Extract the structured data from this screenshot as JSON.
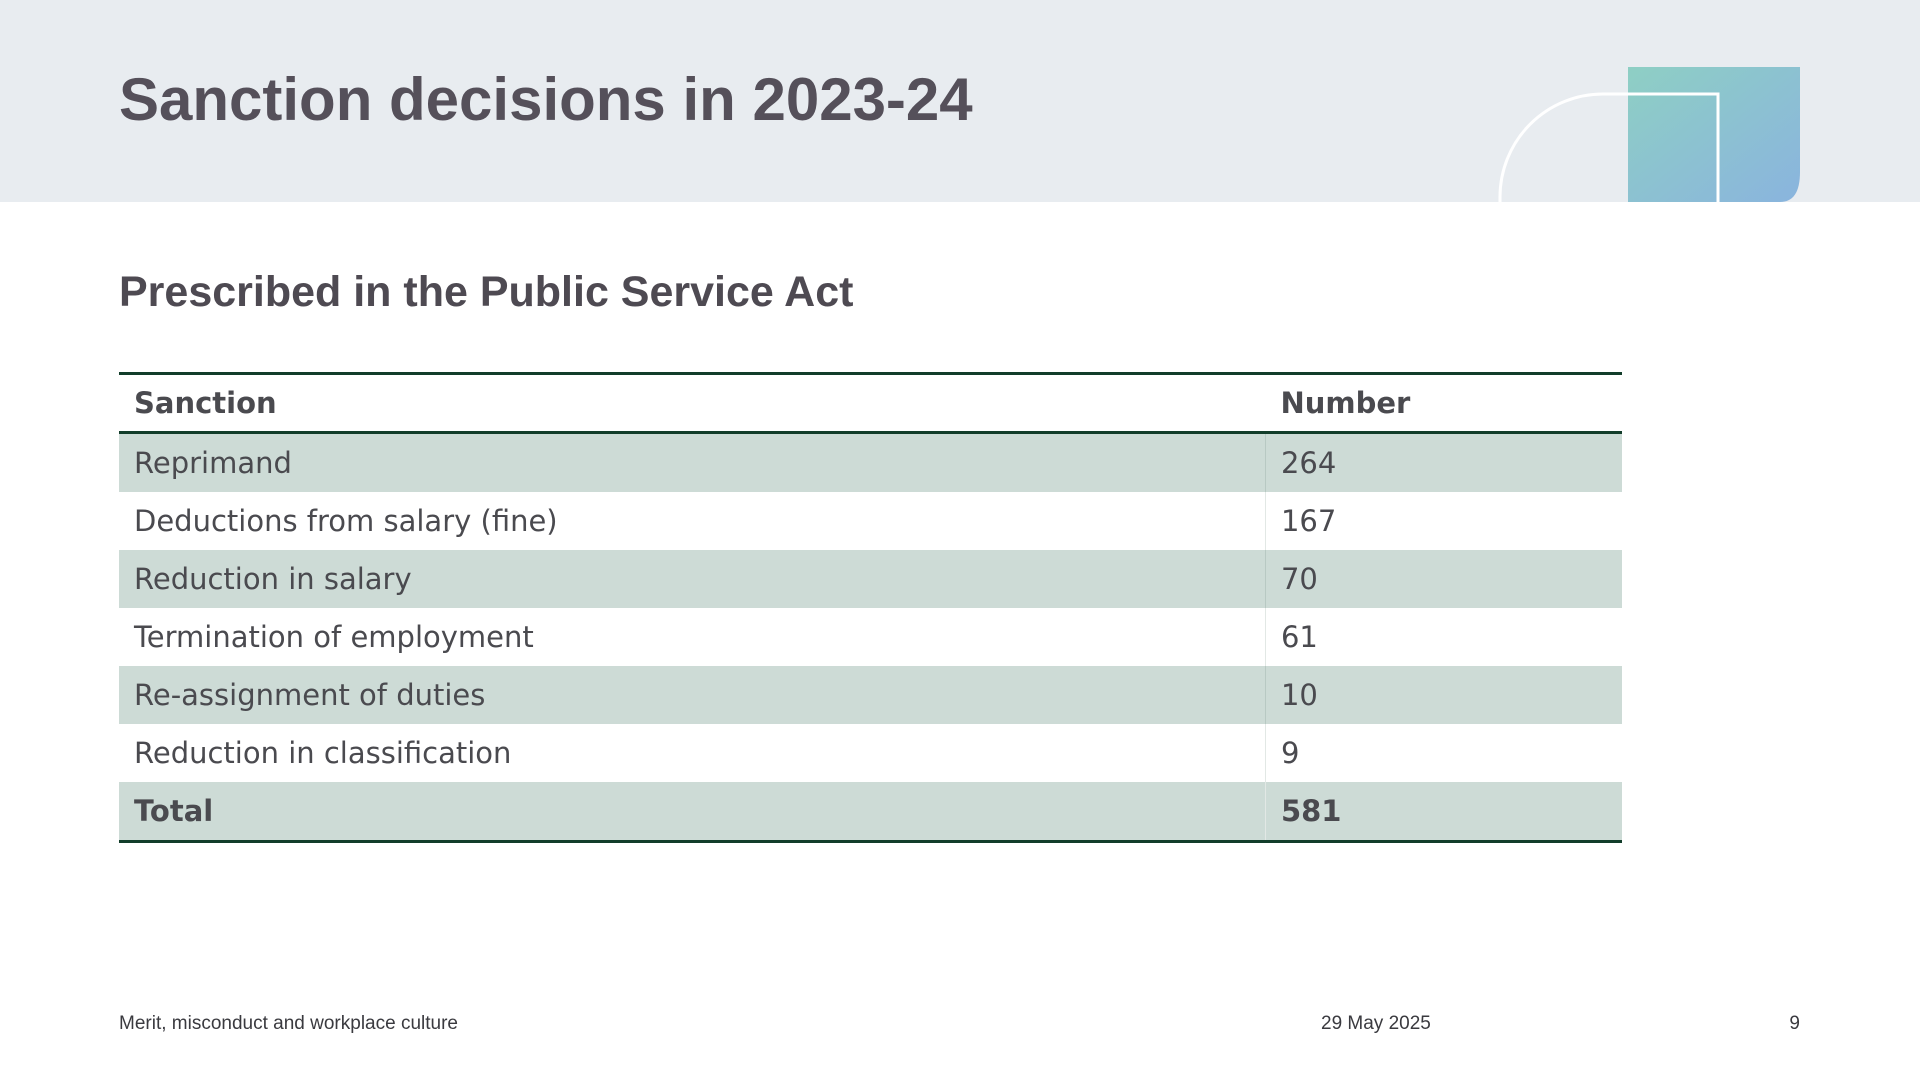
{
  "slide": {
    "title": "Sanction decisions in 2023-24",
    "subtitle": "Prescribed in the Public Service Act"
  },
  "table": {
    "headers": {
      "sanction": "Sanction",
      "number": "Number"
    },
    "rows": [
      {
        "sanction": "Reprimand",
        "number": "264"
      },
      {
        "sanction": "Deductions from salary (fine)",
        "number": "167"
      },
      {
        "sanction": "Reduction in salary",
        "number": "70"
      },
      {
        "sanction": "Termination of employment",
        "number": "61"
      },
      {
        "sanction": "Re-assignment of duties",
        "number": "10"
      },
      {
        "sanction": "Reduction in classification",
        "number": "9"
      }
    ],
    "total": {
      "label": "Total",
      "number": "581"
    }
  },
  "footer": {
    "left": "Merit, misconduct and workplace culture",
    "date": "29 May 2025",
    "page": "9"
  },
  "colors": {
    "header_band": "#e8ecf0",
    "title_text": "#55505a",
    "table_rule": "#123d2a",
    "row_shade": "#cddbd6",
    "accent_gradient_start": "#8ecfc4",
    "accent_gradient_end": "#8ab4de"
  }
}
